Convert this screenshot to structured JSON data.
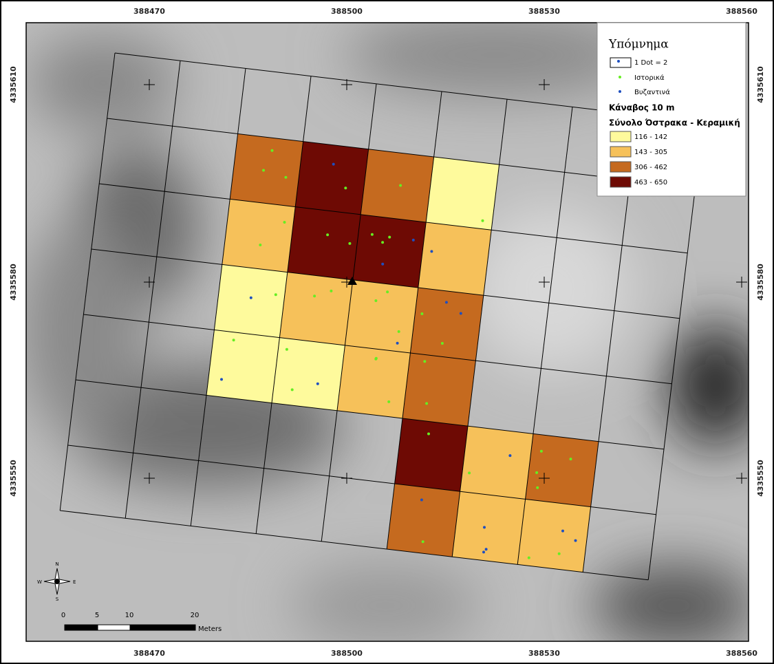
{
  "x_labels": [
    388470,
    388500,
    388530,
    388560
  ],
  "y_labels": [
    4335610,
    4335580,
    4335550
  ],
  "legend": {
    "title": "Υπόμνημα",
    "dot_density": "1 Dot = 2",
    "points": [
      {
        "label": "Ιστορικά",
        "color": "#66ee22"
      },
      {
        "label": "Βυζαντινά",
        "color": "#1f4fbf"
      }
    ],
    "grid_title": "Κάναβος 10 m",
    "classes_title": "Σύνολο Όστρακα - Κεραμική",
    "classes": [
      {
        "label": "116 - 142",
        "color": "#fefa9c"
      },
      {
        "label": "143 - 305",
        "color": "#f6c15a"
      },
      {
        "label": "306 - 462",
        "color": "#c56a1f"
      },
      {
        "label": "463 - 650",
        "color": "#6e0a04"
      }
    ]
  },
  "scale_bar": {
    "ticks": [
      0,
      5,
      10,
      20
    ],
    "unit": "Meters"
  },
  "compass": {
    "n": "N",
    "s": "S",
    "e": "E",
    "w": "W"
  }
}
